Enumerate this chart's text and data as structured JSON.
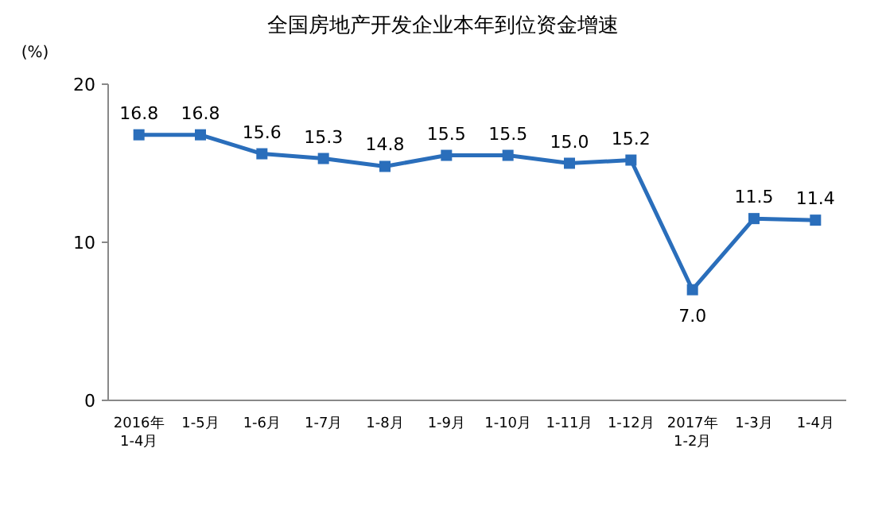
{
  "chart_data": {
    "type": "line",
    "title": "全国房地产开发企业本年到位资金增速",
    "ylabel": "(%)",
    "categories": [
      "2016年\n1-4月",
      "1-5月",
      "1-6月",
      "1-7月",
      "1-8月",
      "1-9月",
      "1-10月",
      "1-11月",
      "1-12月",
      "2017年\n1-2月",
      "1-3月",
      "1-4月"
    ],
    "series": [
      {
        "color": "#2a6ebb",
        "values": [
          16.8,
          16.8,
          15.6,
          15.3,
          14.8,
          15.5,
          15.5,
          15.0,
          15.2,
          7.0,
          11.5,
          11.4
        ],
        "value_labels": [
          "16.8",
          "16.8",
          "15.6",
          "15.3",
          "14.8",
          "15.5",
          "15.5",
          "15.0",
          "15.2",
          "7.0",
          "11.5",
          "11.4"
        ]
      }
    ],
    "ylim": [
      0,
      20
    ],
    "yticks": [
      0,
      10,
      20
    ],
    "grid": false,
    "marker": "square",
    "line_style": "solid"
  }
}
